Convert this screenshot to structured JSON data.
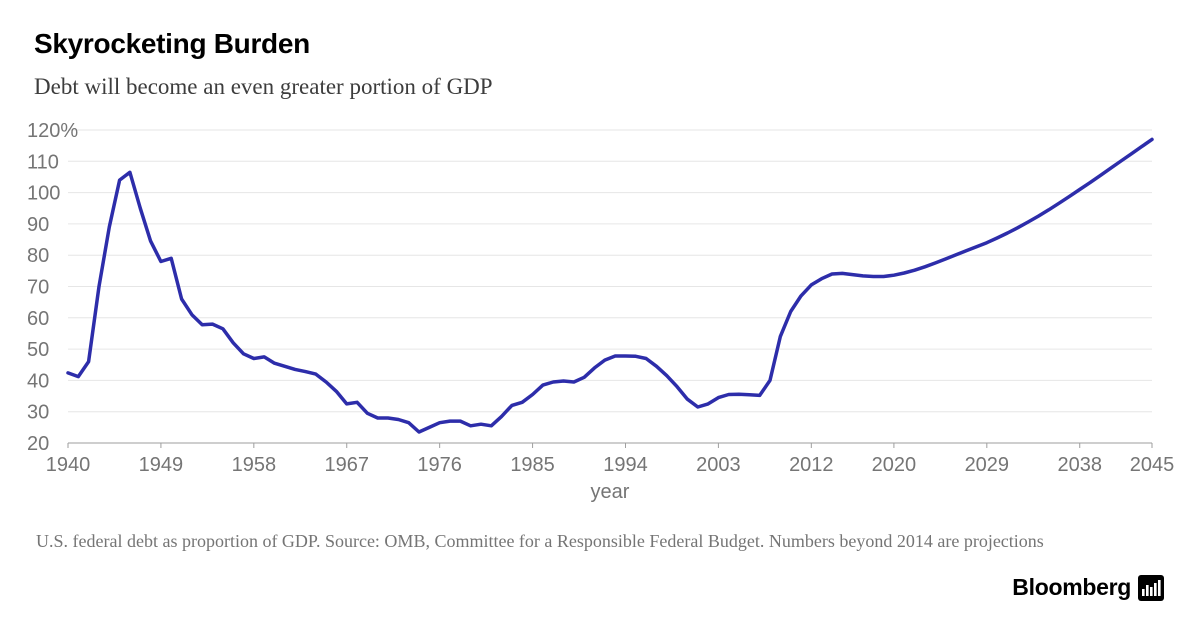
{
  "header": {
    "title": "Skyrocketing Burden",
    "subtitle": "Debt will become an even greater portion of GDP"
  },
  "footer": {
    "note": "U.S. federal debt as proportion of GDP. Source: OMB, Committee for a Responsible Federal Budget. Numbers beyond 2014 are projections",
    "brand": "Bloomberg"
  },
  "chart_data": {
    "type": "line",
    "title": "Skyrocketing Burden",
    "subtitle": "Debt will become an even greater portion of GDP",
    "xlabel": "year",
    "ylabel": "",
    "y_unit": "%",
    "xlim": [
      1940,
      2045
    ],
    "ylim": [
      20,
      120
    ],
    "grid": true,
    "legend": "none",
    "line_color": "#2d2daa",
    "grid_color": "#e6e6e6",
    "axis_color": "#9e9e9e",
    "tick_label_color": "#757575",
    "y_ticks": [
      {
        "value": 20,
        "label": "20"
      },
      {
        "value": 30,
        "label": "30"
      },
      {
        "value": 40,
        "label": "40"
      },
      {
        "value": 50,
        "label": "50"
      },
      {
        "value": 60,
        "label": "60"
      },
      {
        "value": 70,
        "label": "70"
      },
      {
        "value": 80,
        "label": "80"
      },
      {
        "value": 90,
        "label": "90"
      },
      {
        "value": 100,
        "label": "100"
      },
      {
        "value": 110,
        "label": "110"
      },
      {
        "value": 120,
        "label": "120%"
      }
    ],
    "x_ticks": [
      1940,
      1949,
      1958,
      1967,
      1976,
      1985,
      1994,
      2003,
      2012,
      2020,
      2029,
      2038,
      2045
    ],
    "series": [
      {
        "name": "U.S. federal debt as proportion of GDP",
        "x": [
          1940,
          1941,
          1942,
          1943,
          1944,
          1945,
          1946,
          1947,
          1948,
          1949,
          1950,
          1951,
          1952,
          1953,
          1954,
          1955,
          1956,
          1957,
          1958,
          1959,
          1960,
          1961,
          1962,
          1963,
          1964,
          1965,
          1966,
          1967,
          1968,
          1969,
          1970,
          1971,
          1972,
          1973,
          1974,
          1975,
          1976,
          1977,
          1978,
          1979,
          1980,
          1981,
          1982,
          1983,
          1984,
          1985,
          1986,
          1987,
          1988,
          1989,
          1990,
          1991,
          1992,
          1993,
          1994,
          1995,
          1996,
          1997,
          1998,
          1999,
          2000,
          2001,
          2002,
          2003,
          2004,
          2005,
          2006,
          2007,
          2008,
          2009,
          2010,
          2011,
          2012,
          2013,
          2014,
          2015,
          2016,
          2017,
          2018,
          2019,
          2020,
          2021,
          2022,
          2023,
          2024,
          2025,
          2026,
          2027,
          2028,
          2029,
          2030,
          2031,
          2032,
          2033,
          2034,
          2035,
          2036,
          2037,
          2038,
          2039,
          2040,
          2041,
          2042,
          2043,
          2044,
          2045
        ],
        "values": [
          42.4,
          41.2,
          46.0,
          70.0,
          89.0,
          104.0,
          106.5,
          95.0,
          84.5,
          78.0,
          79.0,
          66.0,
          61.0,
          57.8,
          58.0,
          56.5,
          52.0,
          48.5,
          47.0,
          47.5,
          45.5,
          44.5,
          43.5,
          42.8,
          42.0,
          39.5,
          36.5,
          32.5,
          33.0,
          29.5,
          28.0,
          28.0,
          27.5,
          26.5,
          23.5,
          25.0,
          26.5,
          27.0,
          27.0,
          25.5,
          26.0,
          25.5,
          28.5,
          32.0,
          33.0,
          35.5,
          38.5,
          39.5,
          39.8,
          39.5,
          41.0,
          44.0,
          46.5,
          47.8,
          47.8,
          47.7,
          47.0,
          44.5,
          41.5,
          38.0,
          34.0,
          31.5,
          32.5,
          34.5,
          35.5,
          35.6,
          35.4,
          35.2,
          40.0,
          54.0,
          62.0,
          67.0,
          70.5,
          72.5,
          74.0,
          74.2,
          73.8,
          73.4,
          73.2,
          73.2,
          73.6,
          74.3,
          75.2,
          76.3,
          77.5,
          78.8,
          80.1,
          81.4,
          82.7,
          84.0,
          85.5,
          87.1,
          88.8,
          90.6,
          92.5,
          94.5,
          96.6,
          98.8,
          101.0,
          103.2,
          105.5,
          107.8,
          110.1,
          112.4,
          114.7,
          117.0
        ]
      }
    ]
  }
}
